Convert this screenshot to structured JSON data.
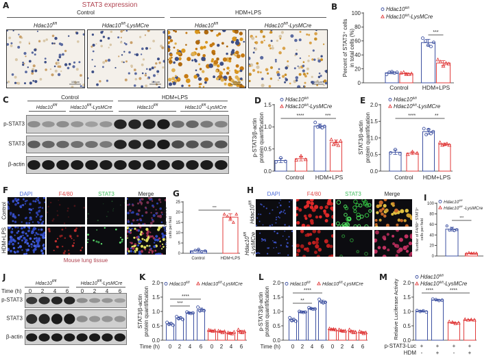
{
  "genotype": {
    "base": "Hdac10",
    "sup": "fl/fl",
    "cre": "-LysMCre"
  },
  "colors": {
    "wt": "#3b4fa0",
    "ko": "#e03a3a",
    "caption": "#b0424f"
  },
  "panels": {
    "A": {
      "letter": "A",
      "title": "STAT3 expression",
      "groups": [
        "Control",
        "HDM+LPS"
      ],
      "scale_bar": "100μm"
    },
    "B": {
      "letter": "B"
    },
    "C": {
      "letter": "C",
      "groups": [
        "Control",
        "HDM+LPS"
      ],
      "rows": [
        "p-STAT3",
        "STAT3",
        "β-actin"
      ]
    },
    "D": {
      "letter": "D"
    },
    "E": {
      "letter": "E"
    },
    "F": {
      "letter": "F",
      "channels": [
        "DAPI",
        "F4/80",
        "STAT3",
        "Merge"
      ],
      "rows": [
        "Control",
        "HDM+LPS"
      ],
      "caption": "Mouse lung tissue"
    },
    "G": {
      "letter": "G"
    },
    "H": {
      "letter": "H",
      "channels": [
        "DAPI",
        "F4/80",
        "STAT3",
        "Merge"
      ]
    },
    "I": {
      "letter": "I"
    },
    "J": {
      "letter": "J",
      "time_label": "Time (h)",
      "times": [
        "0",
        "2",
        "4",
        "6",
        "0",
        "2",
        "4",
        "6"
      ],
      "rows": [
        "p-STAT3",
        "STAT3",
        "β-actin"
      ]
    },
    "K": {
      "letter": "K"
    },
    "L": {
      "letter": "L"
    },
    "M": {
      "letter": "M"
    }
  },
  "chart_data": [
    {
      "id": "B",
      "type": "bar",
      "ylabel": [
        "Percent of STAT3⁺ cells",
        "in total cells (%)"
      ],
      "yticks": [
        "0",
        "20",
        "40",
        "60",
        "80",
        "100"
      ],
      "ylim": [
        0,
        100
      ],
      "categories": [
        "Control",
        "HDM+LPS"
      ],
      "legend": "top-left",
      "series": [
        {
          "name": "Hdac10fl/fl",
          "marker": "circle",
          "bars": [
            {
              "category": "Control",
              "value": 14.4,
              "points": [
                12,
                15,
                16,
                14,
                15
              ]
            },
            {
              "category": "HDM+LPS",
              "value": 57.6,
              "points": [
                64,
                60,
                54,
                52,
                58
              ]
            }
          ]
        },
        {
          "name": "Hdac10fl/fl-LysMCre",
          "marker": "triangle",
          "bars": [
            {
              "category": "Control",
              "value": 13.2,
              "points": [
                14,
                15,
                12,
                12,
                13
              ]
            },
            {
              "category": "HDM+LPS",
              "value": 28.4,
              "points": [
                33,
                30,
                24,
                28,
                27
              ]
            }
          ]
        }
      ],
      "significance": [
        {
          "bars": [
            1,
            3
          ],
          "label": "***"
        }
      ]
    },
    {
      "id": "D",
      "type": "bar",
      "ylabel": [
        "p-STAT3/β-actin",
        "protein quantification"
      ],
      "yticks": [
        "0.0",
        "0.5",
        "1.0",
        "1.5"
      ],
      "ylim": [
        0,
        1.5
      ],
      "categories": [
        "Control",
        "HDM+LPS"
      ],
      "legend": "top-left",
      "series": [
        {
          "name": "Hdac10fl/fl",
          "marker": "circle",
          "bars": [
            {
              "category": "Control",
              "value": 0.24,
              "points": [
                0.21,
                0.3,
                0.22
              ]
            },
            {
              "category": "HDM+LPS",
              "value": 1.02,
              "points": [
                1.1,
                1.0,
                1.02,
                0.98,
                1.01
              ]
            }
          ]
        },
        {
          "name": "Hdac10fl/fl-LysMCre",
          "marker": "triangle",
          "bars": [
            {
              "category": "Control",
              "value": 0.28,
              "points": [
                0.25,
                0.34,
                0.26
              ]
            },
            {
              "category": "HDM+LPS",
              "value": 0.65,
              "points": [
                0.71,
                0.6,
                0.66,
                0.58,
                0.68
              ]
            }
          ]
        }
      ],
      "significance": [
        {
          "bars": [
            0,
            1
          ],
          "label": "****"
        },
        {
          "bars": [
            1,
            3
          ],
          "label": "***"
        }
      ]
    },
    {
      "id": "E",
      "type": "bar",
      "ylabel": [
        "STAT3/β-actin",
        "protein quantification"
      ],
      "yticks": [
        "0.0",
        "0.5",
        "1.0",
        "1.5",
        "2.0"
      ],
      "ylim": [
        0,
        2.0
      ],
      "categories": [
        "Control",
        "HDM+LPS"
      ],
      "legend": "top-left",
      "series": [
        {
          "name": "Hdac10fl/fl",
          "marker": "circle",
          "bars": [
            {
              "category": "Control",
              "value": 0.57,
              "points": [
                0.55,
                0.65,
                0.52
              ]
            },
            {
              "category": "HDM+LPS",
              "value": 1.19,
              "points": [
                1.28,
                1.1,
                1.25,
                1.13,
                1.19
              ]
            }
          ]
        },
        {
          "name": "Hdac10fl/fl-LysMCre",
          "marker": "triangle",
          "bars": [
            {
              "category": "Control",
              "value": 0.54,
              "points": [
                0.5,
                0.58,
                0.54
              ]
            },
            {
              "category": "HDM+LPS",
              "value": 0.81,
              "points": [
                0.86,
                0.78,
                0.8,
                0.82,
                0.78
              ]
            }
          ]
        }
      ],
      "significance": [
        {
          "bars": [
            0,
            1
          ],
          "label": "****"
        },
        {
          "bars": [
            1,
            3
          ],
          "label": "**"
        }
      ]
    },
    {
      "id": "G",
      "type": "bar",
      "ylabel": [
        "Number of F4/80⁺ STAT3⁺",
        "cells per field"
      ],
      "yticks": [
        "0",
        "5",
        "10",
        "15",
        "20",
        "25"
      ],
      "ylim": [
        0,
        25
      ],
      "categories": [
        "Control",
        "HDM+LPS"
      ],
      "series": [
        {
          "marker": "circle",
          "bars": [
            {
              "category": "Control",
              "value": 1.2,
              "points": [
                0.5,
                1.5,
                2.0,
                0.8,
                1.2
              ]
            }
          ]
        },
        {
          "marker": "triangle",
          "bars": [
            {
              "category": "HDM+LPS",
              "value": 17.6,
              "points": [
                19,
                18,
                17,
                15,
                19
              ]
            }
          ]
        }
      ],
      "significance": [
        {
          "bars": [
            0,
            1
          ],
          "label": "***"
        }
      ]
    },
    {
      "id": "I",
      "type": "bar",
      "ylabel": [
        "Number of F4/80⁺ STAT3⁺",
        "cells per field"
      ],
      "yticks": [
        "0",
        "20",
        "40",
        "60",
        "80",
        "100"
      ],
      "ylim": [
        0,
        100
      ],
      "categories": [],
      "legend": "top-left",
      "series": [
        {
          "name": "Hdac10fl/fl",
          "marker": "circle",
          "bars": [
            {
              "value": 51,
              "points": [
                57,
                49,
                52,
                48,
                50
              ]
            }
          ]
        },
        {
          "name": "Hdac10fl/fl -LysMCre",
          "marker": "triangle",
          "bars": [
            {
              "value": 5,
              "points": [
                4,
                6,
                5,
                5,
                5
              ]
            }
          ]
        }
      ],
      "significance": [
        {
          "bars": [
            0,
            1
          ],
          "label": "***"
        }
      ]
    },
    {
      "id": "K",
      "type": "bar",
      "ylabel": [
        "STAT3/β-actin",
        "protein quantification"
      ],
      "yticks": [
        "0.0",
        "0.5",
        "1.0",
        "1.5",
        "2.0"
      ],
      "ylim": [
        0,
        2.0
      ],
      "xlabel": "Time (h)",
      "legend": "top",
      "series": [
        {
          "name": "Hdac10fl/fl",
          "marker": "circle",
          "bars": [
            {
              "category": "0",
              "value": 0.57,
              "points": [
                0.62,
                0.55,
                0.58,
                0.52
              ]
            },
            {
              "category": "2",
              "value": 0.77,
              "points": [
                0.82,
                0.75,
                0.78,
                0.72
              ]
            },
            {
              "category": "4",
              "value": 0.95,
              "points": [
                0.98,
                0.95,
                0.93,
                0.95
              ]
            },
            {
              "category": "6",
              "value": 1.06,
              "points": [
                1.15,
                1.02,
                1.05,
                1.03
              ]
            }
          ]
        },
        {
          "name": "Hdac10fl/fl-LysMCre",
          "marker": "triangle",
          "bars": [
            {
              "category": "0",
              "value": 0.33,
              "points": [
                0.35,
                0.33,
                0.31,
                0.33
              ]
            },
            {
              "category": "2",
              "value": 0.3,
              "points": [
                0.32,
                0.3,
                0.26,
                0.3
              ]
            },
            {
              "category": "4",
              "value": 0.25,
              "points": [
                0.26,
                0.24,
                0.22,
                0.28
              ]
            },
            {
              "category": "6",
              "value": 0.3,
              "points": [
                0.36,
                0.28,
                0.26,
                0.3
              ]
            }
          ]
        }
      ],
      "significance": [
        {
          "bars": [
            0,
            2
          ],
          "label": "***"
        },
        {
          "bars": [
            0,
            3
          ],
          "label": "****"
        }
      ]
    },
    {
      "id": "L",
      "type": "bar",
      "ylabel": [
        "p-STAT3/β-actin",
        "protein quantification"
      ],
      "yticks": [
        "0.0",
        "0.5",
        "1.0",
        "1.5",
        "2.0"
      ],
      "ylim": [
        0,
        2.0
      ],
      "xlabel": "Time (h)",
      "legend": "top",
      "series": [
        {
          "name": "Hdac10fl/fl",
          "marker": "circle",
          "bars": [
            {
              "category": "0",
              "value": 0.71,
              "points": [
                0.78,
                0.68,
                0.72,
                0.66
              ]
            },
            {
              "category": "2",
              "value": 0.98,
              "points": [
                1.0,
                0.98,
                0.97,
                0.98
              ]
            },
            {
              "category": "4",
              "value": 1.1,
              "points": [
                1.13,
                1.1,
                1.08,
                1.09
              ]
            },
            {
              "category": "6",
              "value": 1.34,
              "points": [
                1.42,
                1.35,
                1.3,
                1.32
              ]
            }
          ]
        },
        {
          "name": "Hdac10fl/fl-LysMCre",
          "marker": "triangle",
          "bars": [
            {
              "category": "0",
              "value": 0.38,
              "points": [
                0.4,
                0.37,
                0.38,
                0.36
              ]
            },
            {
              "category": "2",
              "value": 0.33,
              "points": [
                0.36,
                0.33,
                0.31,
                0.32
              ]
            },
            {
              "category": "4",
              "value": 0.3,
              "points": [
                0.36,
                0.3,
                0.26,
                0.28
              ]
            },
            {
              "category": "6",
              "value": 0.27,
              "points": [
                0.3,
                0.27,
                0.23,
                0.26
              ]
            }
          ]
        }
      ],
      "significance": [
        {
          "bars": [
            0,
            2
          ],
          "label": "**"
        },
        {
          "bars": [
            0,
            3
          ],
          "label": "****"
        }
      ]
    },
    {
      "id": "M",
      "type": "bar",
      "ylabel": [
        "Relative Luciferase Activity"
      ],
      "yticks": [
        "0.0",
        "0.5",
        "1.0",
        "1.5",
        "2.0"
      ],
      "ylim": [
        0,
        2.0
      ],
      "legend": "top-left",
      "rows": [
        {
          "label": "p-STAT3-Luc",
          "values": [
            "+",
            "+",
            "+",
            "+"
          ]
        },
        {
          "label": "HDM",
          "values": [
            "-",
            "+",
            "-",
            "+"
          ]
        }
      ],
      "series": [
        {
          "name": "Hdac10fl/fl",
          "marker": "circle",
          "bars": [
            {
              "value": 1.01,
              "points": [
                1.03,
                1.0,
                1.02,
                0.98
              ]
            },
            {
              "value": 1.4,
              "points": [
                1.43,
                1.41,
                1.38,
                1.39
              ]
            }
          ]
        },
        {
          "name": "Hdac10fl/fl-LysMCre",
          "marker": "triangle",
          "bars": [
            {
              "value": 0.61,
              "points": [
                0.64,
                0.62,
                0.58,
                0.6
              ]
            },
            {
              "value": 0.71,
              "points": [
                0.72,
                0.7,
                0.71,
                0.7
              ]
            }
          ]
        }
      ],
      "significance": [
        {
          "bars": [
            0,
            1
          ],
          "label": "****"
        },
        {
          "bars": [
            1,
            3
          ],
          "label": "****"
        }
      ]
    }
  ]
}
